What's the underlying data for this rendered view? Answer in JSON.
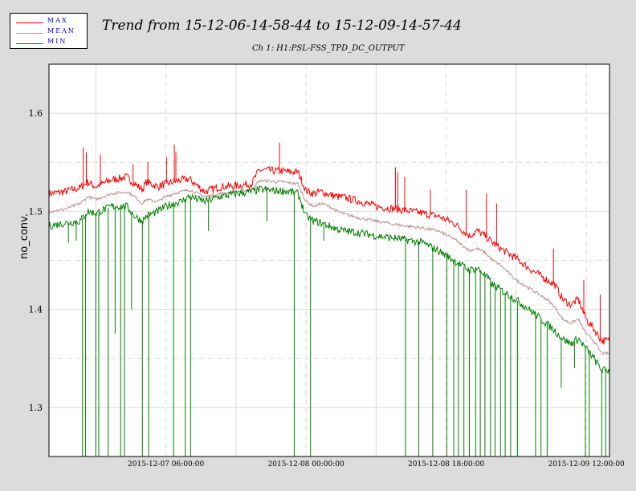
{
  "legend": {
    "items": [
      {
        "label": "MAX",
        "color": "#ff0000"
      },
      {
        "label": "MEAN",
        "color": "#bc8f8f"
      },
      {
        "label": "MIN",
        "color": "#008000"
      }
    ]
  },
  "chart_data": {
    "type": "line",
    "title": "Trend from 15-12-06-14-58-44 to 15-12-09-14-57-44",
    "subtitle": "Ch 1: H1:PSL-FSS_TPD_DC_OUTPUT",
    "xlabel": "",
    "ylabel": "no_conv.",
    "x_unit": "hours since 2015-12-06 14:58:44",
    "xlim": [
      0,
      72
    ],
    "ylim": [
      1.25,
      1.65
    ],
    "y_ticks": [
      1.3,
      1.4,
      1.5,
      1.6
    ],
    "x_ticks": [
      {
        "x": 15.02,
        "label": "2015-12-07 06:00:00"
      },
      {
        "x": 33.02,
        "label": "2015-12-08 00:00:00"
      },
      {
        "x": 51.02,
        "label": "2015-12-08 18:00:00"
      },
      {
        "x": 69.02,
        "label": "2015-12-09 12:00:00"
      }
    ],
    "grid": true,
    "legend_position": "top-left, outside plot",
    "series": [
      {
        "name": "MAX",
        "color": "#ff0000",
        "x": [
          0,
          2,
          4,
          5,
          6,
          8,
          10,
          11,
          12,
          12.5,
          14,
          15,
          16,
          17,
          18,
          20,
          22,
          24,
          25,
          26,
          27,
          28,
          29,
          30,
          31,
          32,
          33,
          34,
          35,
          36,
          37,
          38,
          40,
          42,
          45,
          48,
          50,
          52,
          54,
          55,
          56,
          57,
          58,
          60,
          62,
          64,
          65,
          66,
          67,
          68,
          69,
          70,
          71,
          72
        ],
        "values": [
          1.518,
          1.52,
          1.524,
          1.53,
          1.525,
          1.532,
          1.535,
          1.528,
          1.522,
          1.53,
          1.525,
          1.528,
          1.53,
          1.532,
          1.533,
          1.52,
          1.525,
          1.526,
          1.527,
          1.528,
          1.542,
          1.542,
          1.541,
          1.541,
          1.54,
          1.54,
          1.521,
          1.518,
          1.52,
          1.517,
          1.515,
          1.514,
          1.51,
          1.505,
          1.502,
          1.498,
          1.495,
          1.488,
          1.475,
          1.48,
          1.475,
          1.468,
          1.462,
          1.452,
          1.44,
          1.43,
          1.425,
          1.41,
          1.405,
          1.41,
          1.39,
          1.38,
          1.368,
          1.368
        ],
        "spikes": [
          {
            "x": 4.4,
            "value": 1.565
          },
          {
            "x": 4.8,
            "value": 1.56
          },
          {
            "x": 6.6,
            "value": 1.558
          },
          {
            "x": 10.8,
            "value": 1.548
          },
          {
            "x": 12.7,
            "value": 1.55
          },
          {
            "x": 15.1,
            "value": 1.555
          },
          {
            "x": 16.1,
            "value": 1.568
          },
          {
            "x": 16.3,
            "value": 1.56
          },
          {
            "x": 29.6,
            "value": 1.57
          },
          {
            "x": 44.5,
            "value": 1.545
          },
          {
            "x": 44.8,
            "value": 1.54
          },
          {
            "x": 45.7,
            "value": 1.535
          },
          {
            "x": 49.0,
            "value": 1.522
          },
          {
            "x": 53.6,
            "value": 1.522
          },
          {
            "x": 56.2,
            "value": 1.518
          },
          {
            "x": 57.5,
            "value": 1.508
          },
          {
            "x": 64.8,
            "value": 1.462
          },
          {
            "x": 68.7,
            "value": 1.43
          },
          {
            "x": 70.8,
            "value": 1.415
          }
        ]
      },
      {
        "name": "MEAN",
        "color": "#bc8f8f",
        "x": [
          0,
          2,
          4,
          5,
          6,
          8,
          10,
          11,
          12,
          12.5,
          14,
          15,
          16,
          17,
          18,
          20,
          22,
          24,
          25,
          26,
          27,
          28,
          29,
          30,
          31,
          32,
          33,
          34,
          35,
          36,
          37,
          38,
          40,
          42,
          45,
          48,
          50,
          52,
          54,
          55,
          56,
          57,
          58,
          60,
          62,
          64,
          65,
          66,
          67,
          68,
          69,
          70,
          71,
          72
        ],
        "values": [
          1.5,
          1.502,
          1.508,
          1.515,
          1.512,
          1.518,
          1.52,
          1.515,
          1.508,
          1.512,
          1.51,
          1.515,
          1.518,
          1.52,
          1.522,
          1.515,
          1.518,
          1.52,
          1.521,
          1.522,
          1.531,
          1.531,
          1.53,
          1.53,
          1.529,
          1.528,
          1.51,
          1.505,
          1.508,
          1.505,
          1.5,
          1.497,
          1.493,
          1.49,
          1.486,
          1.483,
          1.48,
          1.472,
          1.46,
          1.462,
          1.458,
          1.45,
          1.445,
          1.43,
          1.42,
          1.41,
          1.402,
          1.39,
          1.386,
          1.39,
          1.375,
          1.368,
          1.355,
          1.355
        ]
      },
      {
        "name": "MIN",
        "color": "#008000",
        "x": [
          0,
          2,
          4,
          5,
          6,
          8,
          10,
          11,
          12,
          12.5,
          14,
          15,
          16,
          17,
          18,
          20,
          22,
          24,
          25,
          26,
          27,
          28,
          29,
          30,
          31,
          32,
          33,
          34,
          35,
          36,
          37,
          38,
          40,
          42,
          45,
          48,
          50,
          52,
          54,
          55,
          56,
          57,
          58,
          60,
          62,
          64,
          65,
          66,
          67,
          68,
          69,
          70,
          71,
          72
        ],
        "values": [
          1.485,
          1.488,
          1.49,
          1.5,
          1.498,
          1.505,
          1.505,
          1.495,
          1.49,
          1.495,
          1.5,
          1.505,
          1.508,
          1.51,
          1.515,
          1.51,
          1.515,
          1.518,
          1.519,
          1.52,
          1.522,
          1.522,
          1.521,
          1.521,
          1.52,
          1.518,
          1.495,
          1.49,
          1.488,
          1.485,
          1.482,
          1.48,
          1.478,
          1.475,
          1.472,
          1.468,
          1.46,
          1.45,
          1.44,
          1.442,
          1.435,
          1.425,
          1.42,
          1.41,
          1.398,
          1.385,
          1.378,
          1.37,
          1.365,
          1.37,
          1.36,
          1.35,
          1.338,
          1.338
        ],
        "dips": [
          {
            "x": 2.5,
            "value": 1.468
          },
          {
            "x": 3.5,
            "value": 1.47
          },
          {
            "x": 4.3,
            "value": 1.25
          },
          {
            "x": 4.7,
            "value": 1.25
          },
          {
            "x": 6.0,
            "value": 1.25
          },
          {
            "x": 6.4,
            "value": 1.25
          },
          {
            "x": 7.6,
            "value": 1.25
          },
          {
            "x": 8.5,
            "value": 1.375
          },
          {
            "x": 9.2,
            "value": 1.25
          },
          {
            "x": 9.7,
            "value": 1.25
          },
          {
            "x": 10.6,
            "value": 1.4
          },
          {
            "x": 12.0,
            "value": 1.25
          },
          {
            "x": 12.8,
            "value": 1.25
          },
          {
            "x": 16.0,
            "value": 1.25
          },
          {
            "x": 17.5,
            "value": 1.25
          },
          {
            "x": 18.2,
            "value": 1.25
          },
          {
            "x": 20.5,
            "value": 1.48
          },
          {
            "x": 28.0,
            "value": 1.49
          },
          {
            "x": 31.5,
            "value": 1.25
          },
          {
            "x": 33.6,
            "value": 1.25
          },
          {
            "x": 35.3,
            "value": 1.47
          },
          {
            "x": 45.8,
            "value": 1.25
          },
          {
            "x": 47.5,
            "value": 1.25
          },
          {
            "x": 49.3,
            "value": 1.25
          },
          {
            "x": 51.1,
            "value": 1.25
          },
          {
            "x": 52.0,
            "value": 1.25
          },
          {
            "x": 52.6,
            "value": 1.25
          },
          {
            "x": 53.3,
            "value": 1.25
          },
          {
            "x": 54.0,
            "value": 1.25
          },
          {
            "x": 54.8,
            "value": 1.25
          },
          {
            "x": 55.4,
            "value": 1.25
          },
          {
            "x": 56.0,
            "value": 1.25
          },
          {
            "x": 56.7,
            "value": 1.25
          },
          {
            "x": 57.3,
            "value": 1.25
          },
          {
            "x": 58.0,
            "value": 1.25
          },
          {
            "x": 58.6,
            "value": 1.25
          },
          {
            "x": 59.3,
            "value": 1.25
          },
          {
            "x": 60.2,
            "value": 1.25
          },
          {
            "x": 62.5,
            "value": 1.25
          },
          {
            "x": 63.2,
            "value": 1.25
          },
          {
            "x": 64.0,
            "value": 1.25
          },
          {
            "x": 65.8,
            "value": 1.32
          },
          {
            "x": 67.5,
            "value": 1.34
          },
          {
            "x": 68.9,
            "value": 1.25
          },
          {
            "x": 69.4,
            "value": 1.25
          },
          {
            "x": 71.0,
            "value": 1.25
          },
          {
            "x": 71.5,
            "value": 1.25
          }
        ]
      }
    ]
  }
}
